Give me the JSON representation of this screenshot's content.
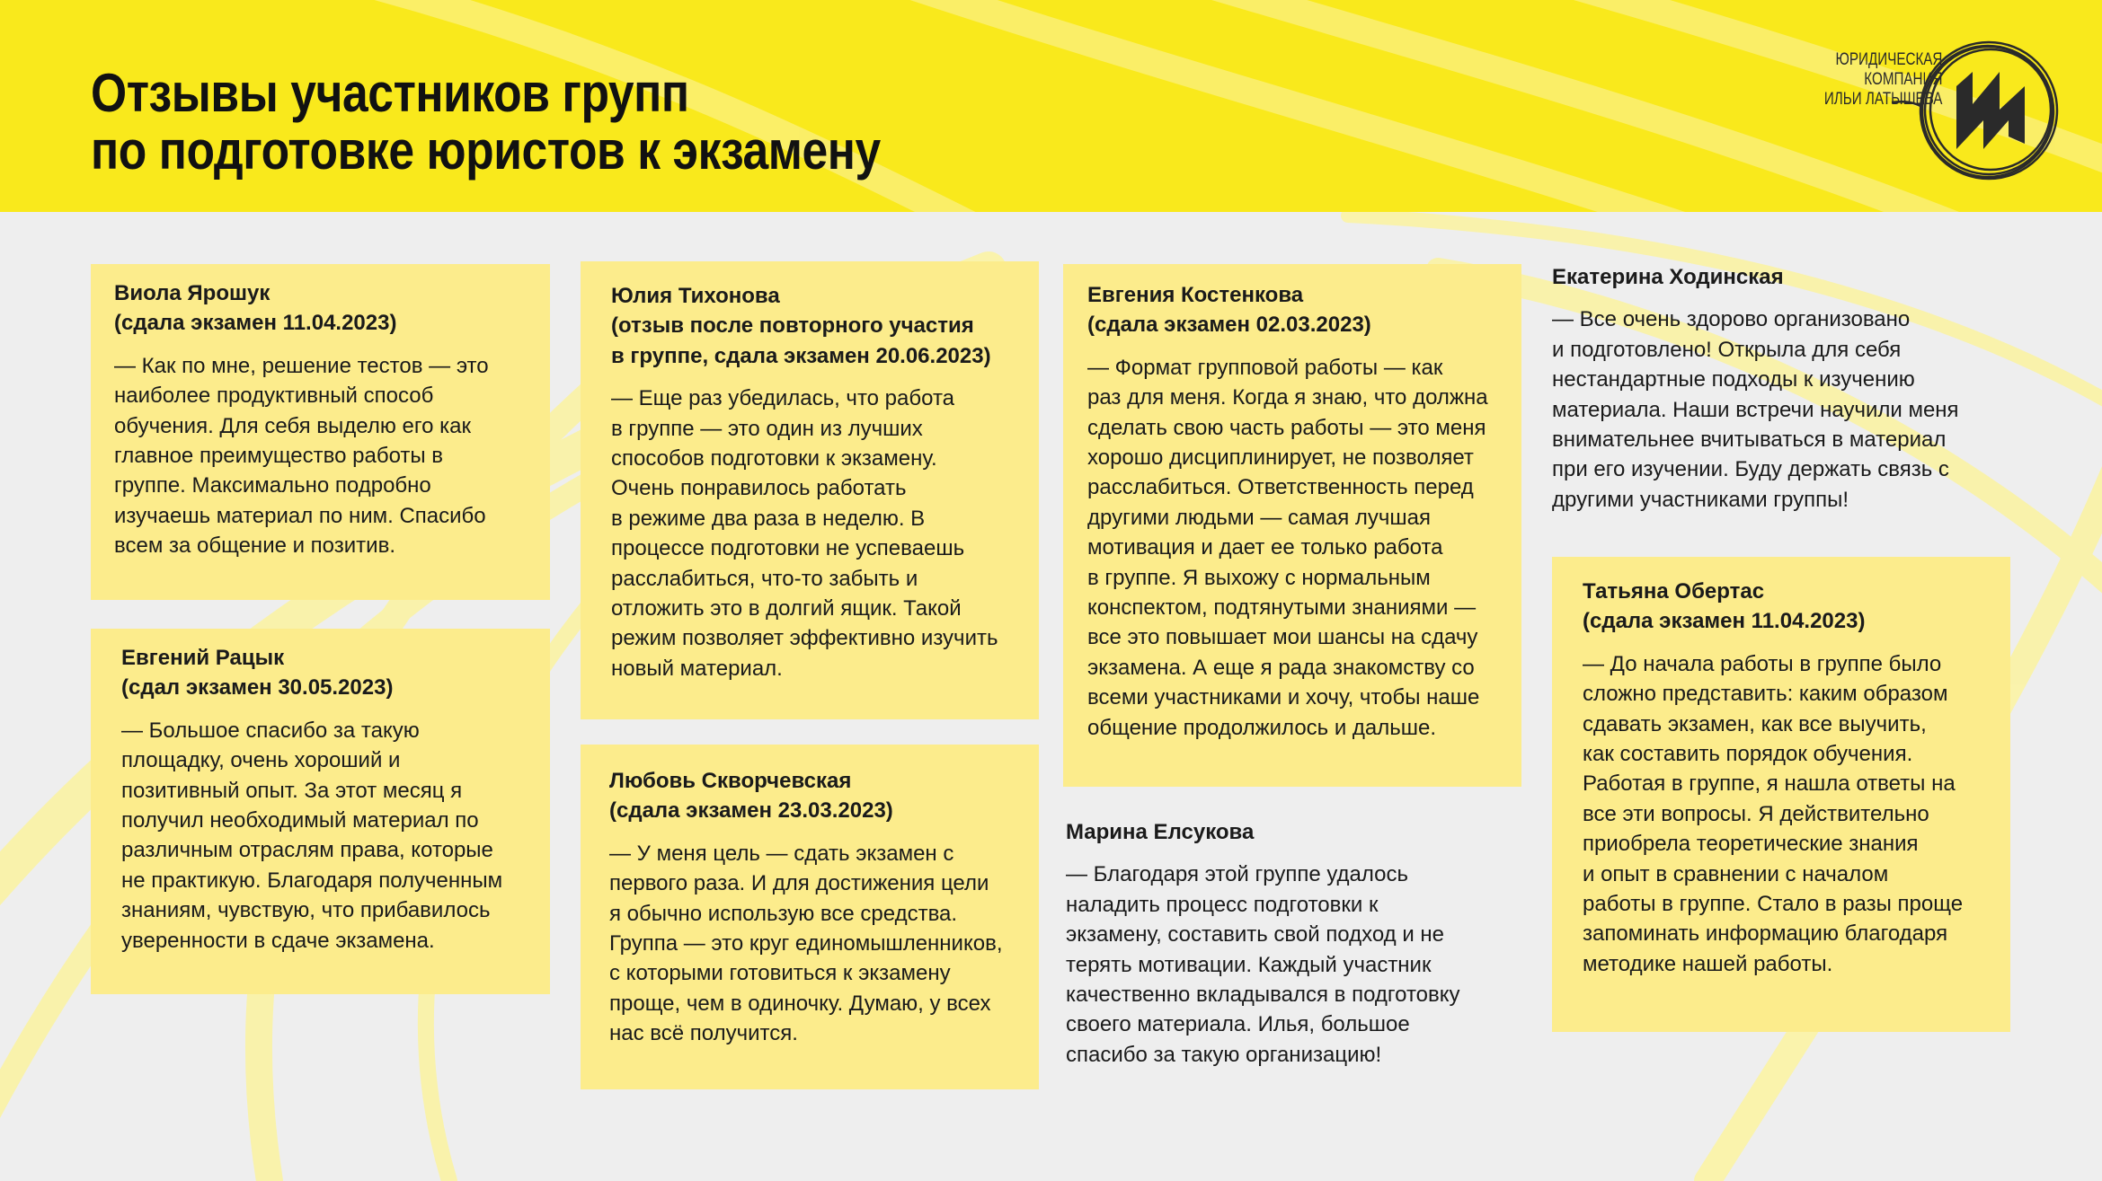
{
  "header": {
    "title_line1": "Отзывы участников групп",
    "title_line2": "по подготовке юристов к экзамену",
    "background_color": "#f9e91c"
  },
  "logo": {
    "text_line1": "ЮРИДИЧЕСКАЯ",
    "text_line2": "КОМПАНИЯ",
    "text_line3": "ИЛЬИ ЛАТЫШЕВА",
    "mark": "ИЛ"
  },
  "colors": {
    "card": "#fcec8c",
    "accent": "#f9e91c",
    "text": "#1a1a1a"
  },
  "reviews": [
    {
      "name": "Виола Ярошук\n(сдала экзамен 11.04.2023)",
      "filled": true,
      "text": "— Как по мне, решение тестов — это\nнаиболее продуктивный способ\nобучения. Для себя выделю его как\nглавное преимущество работы в\nгруппе. Максимально подробно\nизучаешь материал по ним. Спасибо\nвсем за общение и позитив."
    },
    {
      "name": "Евгений Рацык\n(сдал экзамен 30.05.2023)",
      "filled": true,
      "text": "— Большое спасибо за такую\nплощадку, очень хороший и\nпозитивный опыт. За этот месяц я\nполучил необходимый материал по\nразличным отраслям права, которые\nне практикую. Благодаря полученным\nзнаниям, чувствую, что прибавилось\nуверенности в сдаче экзамена."
    },
    {
      "name": "Юлия Тихонова\n(отзыв после повторного участия\nв группе, сдала экзамен 20.06.2023)",
      "filled": true,
      "text": "— Еще раз убедилась, что работа\nв группе — это один из лучших\nспособов подготовки к экзамену.\nОчень понравилось работать\nв режиме два раза в неделю. В\nпроцессе подготовки не успеваешь\nрасслабиться, что-то забыть и\nотложить это в долгий ящик. Такой\nрежим позволяет эффективно изучить\nновый материал."
    },
    {
      "name": "Любовь Скворчевская\n(сдала экзамен 23.03.2023)",
      "filled": true,
      "text": "— У меня цель — сдать экзамен с\nпервого раза. И для достижения цели\nя обычно использую все средства.\nГруппа — это круг единомышленников,\nс которыми готовиться к экзамену\nпроще, чем в одиночку. Думаю, у всех\nнас всё получится."
    },
    {
      "name": "Евгения Костенкова\n(сдала экзамен 02.03.2023)",
      "filled": true,
      "text": "— Формат групповой работы — как\nраз для меня. Когда я знаю, что должна\nсделать свою часть работы — это меня\nхорошо дисциплинирует, не позволяет\nрасслабиться. Ответственность перед\nдругими людьми — самая лучшая\nмотивация и дает ее только работа\nв группе. Я выхожу с нормальным\nконспектом, подтянутыми знаниями —\nвсе это повышает мои шансы на сдачу\nэкзамена. А еще я рада знакомству со\nвсеми участниками и хочу, чтобы наше\nобщение продолжилось и дальше."
    },
    {
      "name": "Марина Елсукова",
      "filled": false,
      "text": "— Благодаря этой группе удалось\nналадить процесс подготовки к\nэкзамену, составить свой подход и не\nтерять мотивации. Каждый участник\nкачественно вкладывался в подготовку\nсвоего материала. Илья, большое\nспасибо за такую организацию!"
    },
    {
      "name": "Екатерина Ходинская",
      "filled": false,
      "text": "— Все очень здорово организовано\nи подготовлено! Открыла для себя\nнестандартные подходы к изучению\nматериала. Наши встречи научили меня\nвнимательнее вчитываться в материал\nпри его изучении. Буду держать связь с\nдругими участниками группы!"
    },
    {
      "name": "Татьяна Обертас\n(сдала экзамен 11.04.2023)",
      "filled": true,
      "text": "— До начала работы в группе было\nсложно представить: каким образом\nсдавать экзамен, как все выучить,\nкак составить порядок обучения.\nРаботая в группе, я нашла ответы на\nвсе эти вопросы. Я действительно\nприобрела теоретические знания\nи опыт в сравнении с началом\nработы в группе. Стало в разы проще\nзапоминать информацию благодаря\nметодике нашей работы."
    }
  ]
}
